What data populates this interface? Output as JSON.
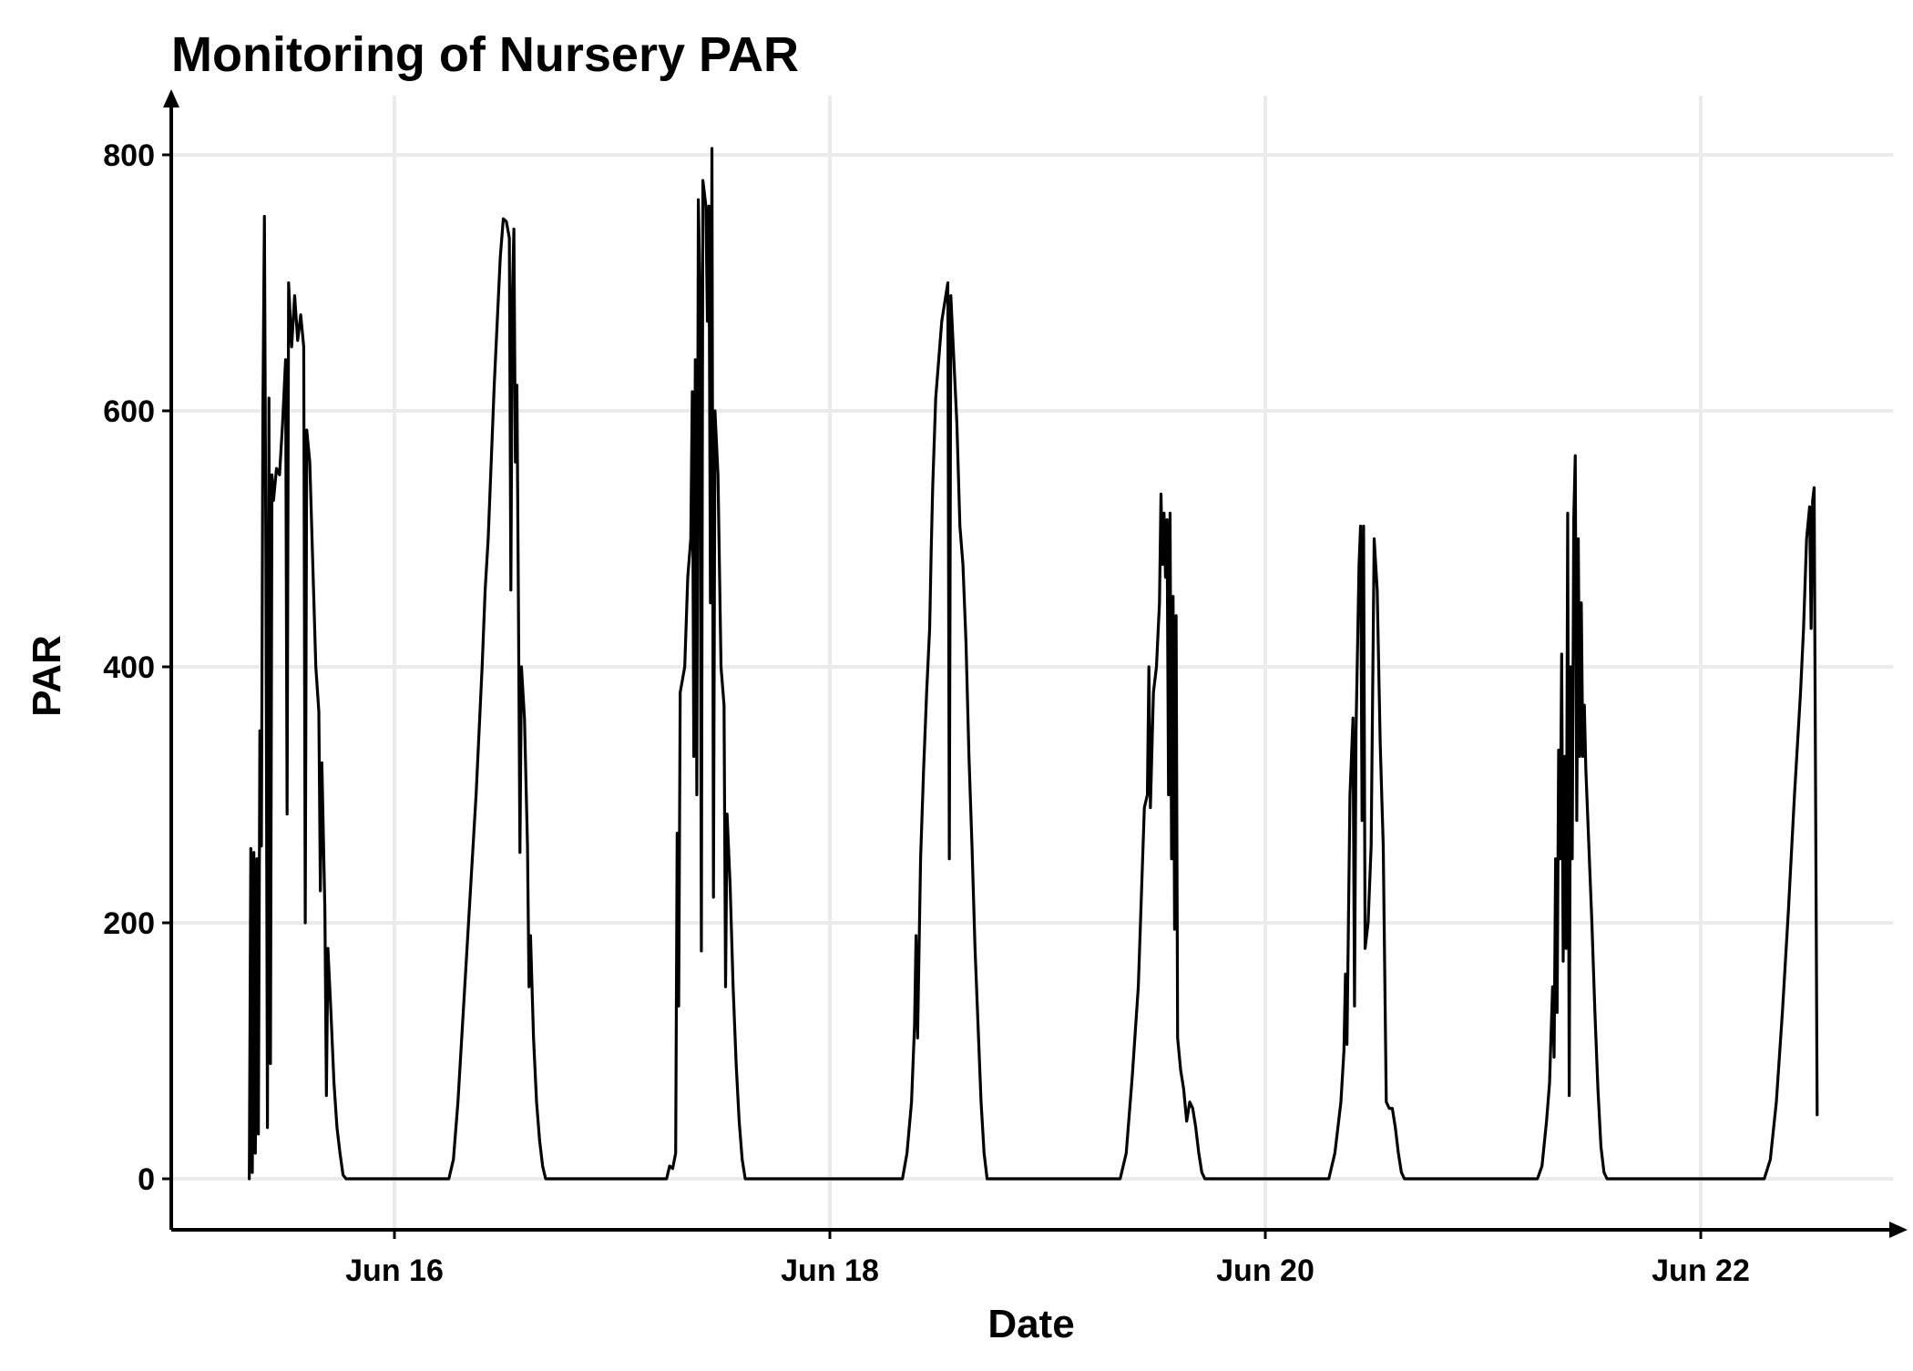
{
  "chart_data": {
    "type": "line",
    "title": "Monitoring of Nursery PAR",
    "xlabel": "Date",
    "ylabel": "PAR",
    "x_axis_type": "date",
    "xlim": [
      "2024-06-14",
      "2024-06-22"
    ],
    "x_tick_labels": [
      "Jun 16",
      "Jun 18",
      "Jun 20",
      "Jun 22"
    ],
    "ylim": [
      -50,
      830
    ],
    "y_ticks": [
      0,
      200,
      400,
      600,
      800
    ],
    "grid": true,
    "legend": "none",
    "colors": {
      "series": "#000000",
      "grid": "#ebebeb",
      "axis": "#000000"
    },
    "series": [
      {
        "points": [
          [
            "2024-06-15T08:00",
            0
          ],
          [
            "2024-06-15T08:10",
            258
          ],
          [
            "2024-06-15T08:20",
            5
          ],
          [
            "2024-06-15T08:30",
            255
          ],
          [
            "2024-06-15T08:40",
            20
          ],
          [
            "2024-06-15T08:50",
            250
          ],
          [
            "2024-06-15T09:00",
            35
          ],
          [
            "2024-06-15T09:10",
            350
          ],
          [
            "2024-06-15T09:20",
            260
          ],
          [
            "2024-06-15T09:30",
            600
          ],
          [
            "2024-06-15T09:40",
            752
          ],
          [
            "2024-06-15T09:50",
            480
          ],
          [
            "2024-06-15T10:00",
            40
          ],
          [
            "2024-06-15T10:10",
            610
          ],
          [
            "2024-06-15T10:20",
            90
          ],
          [
            "2024-06-15T10:30",
            550
          ],
          [
            "2024-06-15T10:40",
            530
          ],
          [
            "2024-06-15T11:00",
            555
          ],
          [
            "2024-06-15T11:20",
            550
          ],
          [
            "2024-06-15T11:40",
            590
          ],
          [
            "2024-06-15T12:00",
            640
          ],
          [
            "2024-06-15T12:10",
            285
          ],
          [
            "2024-06-15T12:20",
            700
          ],
          [
            "2024-06-15T12:40",
            650
          ],
          [
            "2024-06-15T13:00",
            690
          ],
          [
            "2024-06-15T13:20",
            655
          ],
          [
            "2024-06-15T13:40",
            675
          ],
          [
            "2024-06-15T14:00",
            650
          ],
          [
            "2024-06-15T14:10",
            200
          ],
          [
            "2024-06-15T14:20",
            585
          ],
          [
            "2024-06-15T14:40",
            560
          ],
          [
            "2024-06-15T15:00",
            480
          ],
          [
            "2024-06-15T15:20",
            400
          ],
          [
            "2024-06-15T15:40",
            365
          ],
          [
            "2024-06-15T15:50",
            225
          ],
          [
            "2024-06-15T16:00",
            325
          ],
          [
            "2024-06-15T16:20",
            210
          ],
          [
            "2024-06-15T16:30",
            65
          ],
          [
            "2024-06-15T16:40",
            180
          ],
          [
            "2024-06-15T17:00",
            130
          ],
          [
            "2024-06-15T17:20",
            75
          ],
          [
            "2024-06-15T17:40",
            40
          ],
          [
            "2024-06-15T18:00",
            20
          ],
          [
            "2024-06-15T18:20",
            3
          ],
          [
            "2024-06-15T18:40",
            0
          ],
          [
            "2024-06-16T06:00",
            0
          ],
          [
            "2024-06-16T06:30",
            15
          ],
          [
            "2024-06-16T07:00",
            60
          ],
          [
            "2024-06-16T07:30",
            120
          ],
          [
            "2024-06-16T08:00",
            180
          ],
          [
            "2024-06-16T08:30",
            240
          ],
          [
            "2024-06-16T09:00",
            300
          ],
          [
            "2024-06-16T09:20",
            350
          ],
          [
            "2024-06-16T09:40",
            400
          ],
          [
            "2024-06-16T10:00",
            460
          ],
          [
            "2024-06-16T10:20",
            500
          ],
          [
            "2024-06-16T10:40",
            560
          ],
          [
            "2024-06-16T11:00",
            620
          ],
          [
            "2024-06-16T11:20",
            670
          ],
          [
            "2024-06-16T11:40",
            720
          ],
          [
            "2024-06-16T12:00",
            750
          ],
          [
            "2024-06-16T12:20",
            748
          ],
          [
            "2024-06-16T12:40",
            735
          ],
          [
            "2024-06-16T12:50",
            460
          ],
          [
            "2024-06-16T13:00",
            690
          ],
          [
            "2024-06-16T13:10",
            742
          ],
          [
            "2024-06-16T13:20",
            560
          ],
          [
            "2024-06-16T13:30",
            620
          ],
          [
            "2024-06-16T13:40",
            450
          ],
          [
            "2024-06-16T13:50",
            255
          ],
          [
            "2024-06-16T14:00",
            400
          ],
          [
            "2024-06-16T14:20",
            360
          ],
          [
            "2024-06-16T14:40",
            260
          ],
          [
            "2024-06-16T14:50",
            150
          ],
          [
            "2024-06-16T15:00",
            190
          ],
          [
            "2024-06-16T15:20",
            110
          ],
          [
            "2024-06-16T15:40",
            60
          ],
          [
            "2024-06-16T16:00",
            30
          ],
          [
            "2024-06-16T16:20",
            10
          ],
          [
            "2024-06-16T16:40",
            0
          ],
          [
            "2024-06-17T06:00",
            0
          ],
          [
            "2024-06-17T06:20",
            10
          ],
          [
            "2024-06-17T06:40",
            8
          ],
          [
            "2024-06-17T07:00",
            20
          ],
          [
            "2024-06-17T07:10",
            270
          ],
          [
            "2024-06-17T07:20",
            135
          ],
          [
            "2024-06-17T07:30",
            380
          ],
          [
            "2024-06-17T08:00",
            400
          ],
          [
            "2024-06-17T08:20",
            470
          ],
          [
            "2024-06-17T08:40",
            500
          ],
          [
            "2024-06-17T08:50",
            615
          ],
          [
            "2024-06-17T09:00",
            330
          ],
          [
            "2024-06-17T09:10",
            640
          ],
          [
            "2024-06-17T09:20",
            300
          ],
          [
            "2024-06-17T09:30",
            765
          ],
          [
            "2024-06-17T09:40",
            700
          ],
          [
            "2024-06-17T09:50",
            178
          ],
          [
            "2024-06-17T10:00",
            780
          ],
          [
            "2024-06-17T10:20",
            760
          ],
          [
            "2024-06-17T10:30",
            670
          ],
          [
            "2024-06-17T10:40",
            760
          ],
          [
            "2024-06-17T10:50",
            450
          ],
          [
            "2024-06-17T11:00",
            805
          ],
          [
            "2024-06-17T11:10",
            220
          ],
          [
            "2024-06-17T11:20",
            600
          ],
          [
            "2024-06-17T11:40",
            550
          ],
          [
            "2024-06-17T12:00",
            400
          ],
          [
            "2024-06-17T12:20",
            370
          ],
          [
            "2024-06-17T12:30",
            150
          ],
          [
            "2024-06-17T12:40",
            285
          ],
          [
            "2024-06-17T13:00",
            230
          ],
          [
            "2024-06-17T13:20",
            150
          ],
          [
            "2024-06-17T13:40",
            90
          ],
          [
            "2024-06-17T14:00",
            45
          ],
          [
            "2024-06-17T14:20",
            15
          ],
          [
            "2024-06-17T14:40",
            0
          ],
          [
            "2024-06-18T08:00",
            0
          ],
          [
            "2024-06-18T08:30",
            20
          ],
          [
            "2024-06-18T09:00",
            60
          ],
          [
            "2024-06-18T09:20",
            120
          ],
          [
            "2024-06-18T09:30",
            190
          ],
          [
            "2024-06-18T09:40",
            110
          ],
          [
            "2024-06-18T10:00",
            250
          ],
          [
            "2024-06-18T10:20",
            320
          ],
          [
            "2024-06-18T10:40",
            380
          ],
          [
            "2024-06-18T11:00",
            430
          ],
          [
            "2024-06-18T11:10",
            490
          ],
          [
            "2024-06-18T11:20",
            540
          ],
          [
            "2024-06-18T11:40",
            610
          ],
          [
            "2024-06-18T12:00",
            640
          ],
          [
            "2024-06-18T12:20",
            670
          ],
          [
            "2024-06-18T12:40",
            685
          ],
          [
            "2024-06-18T13:00",
            700
          ],
          [
            "2024-06-18T13:10",
            250
          ],
          [
            "2024-06-18T13:20",
            690
          ],
          [
            "2024-06-18T13:40",
            640
          ],
          [
            "2024-06-18T14:00",
            590
          ],
          [
            "2024-06-18T14:20",
            510
          ],
          [
            "2024-06-18T14:40",
            480
          ],
          [
            "2024-06-18T15:00",
            420
          ],
          [
            "2024-06-18T15:20",
            330
          ],
          [
            "2024-06-18T15:40",
            260
          ],
          [
            "2024-06-18T16:00",
            180
          ],
          [
            "2024-06-18T16:20",
            120
          ],
          [
            "2024-06-18T16:40",
            60
          ],
          [
            "2024-06-18T17:00",
            20
          ],
          [
            "2024-06-18T17:20",
            0
          ],
          [
            "2024-06-19T08:00",
            0
          ],
          [
            "2024-06-19T08:40",
            20
          ],
          [
            "2024-06-19T09:20",
            80
          ],
          [
            "2024-06-19T10:00",
            150
          ],
          [
            "2024-06-19T10:20",
            220
          ],
          [
            "2024-06-19T10:40",
            290
          ],
          [
            "2024-06-19T11:00",
            300
          ],
          [
            "2024-06-19T11:10",
            400
          ],
          [
            "2024-06-19T11:20",
            290
          ],
          [
            "2024-06-19T11:40",
            380
          ],
          [
            "2024-06-19T12:00",
            400
          ],
          [
            "2024-06-19T12:20",
            450
          ],
          [
            "2024-06-19T12:30",
            535
          ],
          [
            "2024-06-19T12:40",
            480
          ],
          [
            "2024-06-19T12:50",
            520
          ],
          [
            "2024-06-19T13:00",
            470
          ],
          [
            "2024-06-19T13:10",
            515
          ],
          [
            "2024-06-19T13:20",
            300
          ],
          [
            "2024-06-19T13:30",
            520
          ],
          [
            "2024-06-19T13:40",
            250
          ],
          [
            "2024-06-19T13:50",
            455
          ],
          [
            "2024-06-19T14:00",
            195
          ],
          [
            "2024-06-19T14:10",
            440
          ],
          [
            "2024-06-19T14:20",
            110
          ],
          [
            "2024-06-19T14:40",
            85
          ],
          [
            "2024-06-19T15:00",
            70
          ],
          [
            "2024-06-19T15:20",
            45
          ],
          [
            "2024-06-19T15:40",
            60
          ],
          [
            "2024-06-19T16:00",
            55
          ],
          [
            "2024-06-19T16:20",
            40
          ],
          [
            "2024-06-19T16:40",
            20
          ],
          [
            "2024-06-19T17:00",
            5
          ],
          [
            "2024-06-19T17:20",
            0
          ],
          [
            "2024-06-20T07:00",
            0
          ],
          [
            "2024-06-20T07:40",
            20
          ],
          [
            "2024-06-20T08:20",
            60
          ],
          [
            "2024-06-20T08:40",
            100
          ],
          [
            "2024-06-20T08:50",
            160
          ],
          [
            "2024-06-20T09:00",
            105
          ],
          [
            "2024-06-20T09:20",
            300
          ],
          [
            "2024-06-20T09:30",
            330
          ],
          [
            "2024-06-20T09:40",
            360
          ],
          [
            "2024-06-20T09:50",
            135
          ],
          [
            "2024-06-20T10:00",
            350
          ],
          [
            "2024-06-20T10:20",
            480
          ],
          [
            "2024-06-20T10:30",
            510
          ],
          [
            "2024-06-20T10:40",
            280
          ],
          [
            "2024-06-20T10:50",
            510
          ],
          [
            "2024-06-20T11:00",
            180
          ],
          [
            "2024-06-20T11:20",
            200
          ],
          [
            "2024-06-20T11:40",
            260
          ],
          [
            "2024-06-20T12:00",
            500
          ],
          [
            "2024-06-20T12:20",
            460
          ],
          [
            "2024-06-20T12:40",
            340
          ],
          [
            "2024-06-20T13:00",
            260
          ],
          [
            "2024-06-20T13:20",
            60
          ],
          [
            "2024-06-20T13:40",
            55
          ],
          [
            "2024-06-20T14:00",
            55
          ],
          [
            "2024-06-20T14:20",
            40
          ],
          [
            "2024-06-20T14:40",
            20
          ],
          [
            "2024-06-20T15:00",
            5
          ],
          [
            "2024-06-20T15:20",
            0
          ],
          [
            "2024-06-21T06:00",
            0
          ],
          [
            "2024-06-21T06:30",
            10
          ],
          [
            "2024-06-21T07:00",
            45
          ],
          [
            "2024-06-21T07:20",
            75
          ],
          [
            "2024-06-21T07:40",
            150
          ],
          [
            "2024-06-21T07:50",
            95
          ],
          [
            "2024-06-21T08:00",
            250
          ],
          [
            "2024-06-21T08:10",
            130
          ],
          [
            "2024-06-21T08:20",
            335
          ],
          [
            "2024-06-21T08:30",
            250
          ],
          [
            "2024-06-21T08:40",
            410
          ],
          [
            "2024-06-21T08:50",
            170
          ],
          [
            "2024-06-21T09:00",
            330
          ],
          [
            "2024-06-21T09:10",
            180
          ],
          [
            "2024-06-21T09:20",
            520
          ],
          [
            "2024-06-21T09:30",
            65
          ],
          [
            "2024-06-21T09:40",
            400
          ],
          [
            "2024-06-21T09:50",
            250
          ],
          [
            "2024-06-21T10:00",
            515
          ],
          [
            "2024-06-21T10:10",
            565
          ],
          [
            "2024-06-21T10:20",
            280
          ],
          [
            "2024-06-21T10:30",
            500
          ],
          [
            "2024-06-21T10:40",
            330
          ],
          [
            "2024-06-21T10:50",
            450
          ],
          [
            "2024-06-21T11:00",
            330
          ],
          [
            "2024-06-21T11:10",
            370
          ],
          [
            "2024-06-21T11:20",
            320
          ],
          [
            "2024-06-21T11:40",
            260
          ],
          [
            "2024-06-21T12:00",
            200
          ],
          [
            "2024-06-21T12:20",
            130
          ],
          [
            "2024-06-21T12:40",
            70
          ],
          [
            "2024-06-21T13:00",
            25
          ],
          [
            "2024-06-21T13:20",
            5
          ],
          [
            "2024-06-21T13:40",
            0
          ],
          [
            "2024-06-22T07:00",
            0
          ],
          [
            "2024-06-22T07:40",
            15
          ],
          [
            "2024-06-22T08:20",
            60
          ],
          [
            "2024-06-22T09:00",
            130
          ],
          [
            "2024-06-22T09:40",
            210
          ],
          [
            "2024-06-22T10:20",
            300
          ],
          [
            "2024-06-22T10:40",
            340
          ],
          [
            "2024-06-22T11:00",
            380
          ],
          [
            "2024-06-22T11:20",
            430
          ],
          [
            "2024-06-22T11:40",
            500
          ],
          [
            "2024-06-22T12:00",
            525
          ],
          [
            "2024-06-22T12:10",
            430
          ],
          [
            "2024-06-22T12:20",
            530
          ],
          [
            "2024-06-22T12:30",
            540
          ],
          [
            "2024-06-22T12:40",
            290
          ],
          [
            "2024-06-22T12:50",
            50
          ]
        ]
      }
    ]
  }
}
